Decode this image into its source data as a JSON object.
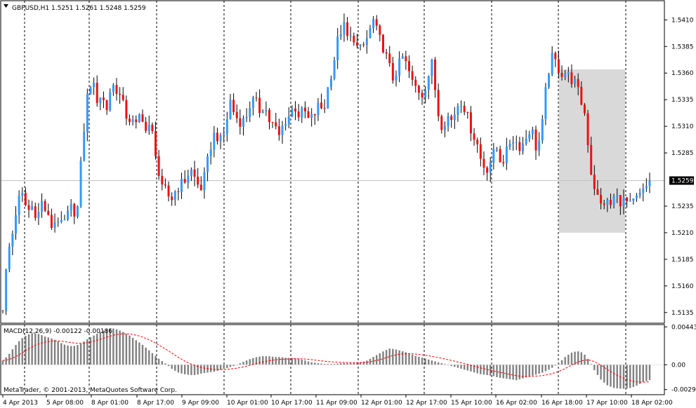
{
  "header": {
    "symbol_line": "GBPUSD,H1  1.5251 1.5261 1.5248 1.5259"
  },
  "macd_header": {
    "label": "MACD(12,26,9) -0.00122 -0.00186"
  },
  "copyright": {
    "text": "MetaTrader, © 2001-2013, MetaQuotes Software Corp."
  },
  "colors": {
    "background": "#ffffff",
    "up_candle": "#3399ff",
    "down_candle": "#ee1111",
    "wick": "#000000",
    "grid": "#000000",
    "highlight_box": "#d9d9d9",
    "macd_hist": "#808080",
    "signal_line": "#ff0000",
    "price_tag_bg": "#000000",
    "price_tag_text": "#ffffff"
  },
  "chart_data": {
    "type": "candlestick",
    "symbol": "GBPUSD",
    "timeframe": "H1",
    "ohlc_header": {
      "open": 1.5251,
      "high": 1.5261,
      "low": 1.5248,
      "close": 1.5259
    },
    "current_price": "1.5259",
    "price_ylim": [
      1.5125,
      1.5428
    ],
    "price_ticks": [
      "1.5410",
      "1.5385",
      "1.5360",
      "1.5335",
      "1.5310",
      "1.5285",
      "1.5235",
      "1.5210",
      "1.5185",
      "1.5160",
      "1.5135"
    ],
    "time_labels": [
      "4 Apr 2013",
      "5 Apr 08:00",
      "8 Apr 01:00",
      "8 Apr 17:00",
      "9 Apr 09:00",
      "10 Apr 01:00",
      "10 Apr 17:00",
      "11 Apr 09:00",
      "12 Apr 01:00",
      "12 Apr 17:00",
      "15 Apr 10:00",
      "16 Apr 02:00",
      "16 Apr 18:00",
      "17 Apr 10:00",
      "18 Apr 02:00"
    ],
    "close_path": [
      1.514,
      1.519,
      1.521,
      1.524,
      1.5245,
      1.523,
      1.5235,
      1.5225,
      1.524,
      1.5225,
      1.5215,
      1.5225,
      1.5215,
      1.5225,
      1.5235,
      1.5225,
      1.5285,
      1.5335,
      1.5355,
      1.5335,
      1.534,
      1.5325,
      1.535,
      1.5345,
      1.5335,
      1.532,
      1.5315,
      1.531,
      1.5325,
      1.5305,
      1.531,
      1.5285,
      1.525,
      1.525,
      1.524,
      1.525,
      1.5255,
      1.526,
      1.527,
      1.526,
      1.525,
      1.5265,
      1.529,
      1.5305,
      1.5295,
      1.5305,
      1.5335,
      1.532,
      1.5315,
      1.5315,
      1.533,
      1.5335,
      1.5325,
      1.533,
      1.5315,
      1.531,
      1.53,
      1.5315,
      1.532,
      1.533,
      1.532,
      1.5325,
      1.5315,
      1.532,
      1.533,
      1.5325,
      1.535,
      1.537,
      1.5395,
      1.5405,
      1.539,
      1.5395,
      1.538,
      1.5385,
      1.5395,
      1.541,
      1.5395,
      1.5385,
      1.537,
      1.5355,
      1.5365,
      1.5375,
      1.5365,
      1.535,
      1.5345,
      1.534,
      1.5355,
      1.537,
      1.5325,
      1.531,
      1.532,
      1.5315,
      1.533,
      1.5335,
      1.532,
      1.5305,
      1.5295,
      1.5275,
      1.527,
      1.528,
      1.529,
      1.5275,
      1.5285,
      1.53,
      1.5295,
      1.529,
      1.53,
      1.531,
      1.529,
      1.53,
      1.5345,
      1.5375,
      1.537,
      1.536,
      1.536,
      1.5355,
      1.535,
      1.5335,
      1.532,
      1.527,
      1.525,
      1.5235,
      1.524,
      1.5235,
      1.5245,
      1.524,
      1.524,
      1.5235,
      1.524,
      1.5245,
      1.525,
      1.5259
    ],
    "macd_ylim": [
      -0.0035,
      0.0047
    ],
    "macd_ticks": [
      "0.00443",
      "0.00",
      "-0.0029"
    ],
    "macd_hist": [
      0.0005,
      0.0012,
      0.0022,
      0.003,
      0.0035,
      0.0037,
      0.0036,
      0.0033,
      0.0031,
      0.0028,
      0.0024,
      0.0022,
      0.0022,
      0.0025,
      0.003,
      0.0034,
      0.0038,
      0.0041,
      0.0043,
      0.0041,
      0.0038,
      0.0034,
      0.0029,
      0.0024,
      0.0018,
      0.0012,
      0.0006,
      0.0001,
      -0.0005,
      -0.0009,
      -0.0011,
      -0.0012,
      -0.0012,
      -0.001,
      -0.0009,
      -0.0008,
      -0.0006,
      -0.0004,
      -0.0002,
      0.0001,
      0.0004,
      0.0007,
      0.0009,
      0.001,
      0.001,
      0.0009,
      0.0009,
      0.0008,
      0.0008,
      0.0007,
      0.0005,
      0.0003,
      0.0002,
      0.0001,
      0.0001,
      0.0001,
      0.0002,
      0.0002,
      0.0002,
      0.0003,
      0.0004,
      0.0008,
      0.0012,
      0.0016,
      0.0019,
      0.0018,
      0.0016,
      0.0014,
      0.0011,
      0.0009,
      0.0007,
      0.0005,
      0.0003,
      0.0001,
      -0.0001,
      -0.0003,
      -0.0005,
      -0.0007,
      -0.0009,
      -0.0011,
      -0.0012,
      -0.0013,
      -0.0015,
      -0.0016,
      -0.0017,
      -0.0018,
      -0.0016,
      -0.0014,
      -0.0012,
      -0.001,
      -0.0007,
      -0.0003,
      0.0002,
      0.0009,
      0.0014,
      0.0016,
      0.0014,
      0.0005,
      -0.0008,
      -0.0018,
      -0.0024,
      -0.0027,
      -0.0028,
      -0.0028,
      -0.0027,
      -0.0024,
      -0.002,
      -0.0018
    ]
  }
}
